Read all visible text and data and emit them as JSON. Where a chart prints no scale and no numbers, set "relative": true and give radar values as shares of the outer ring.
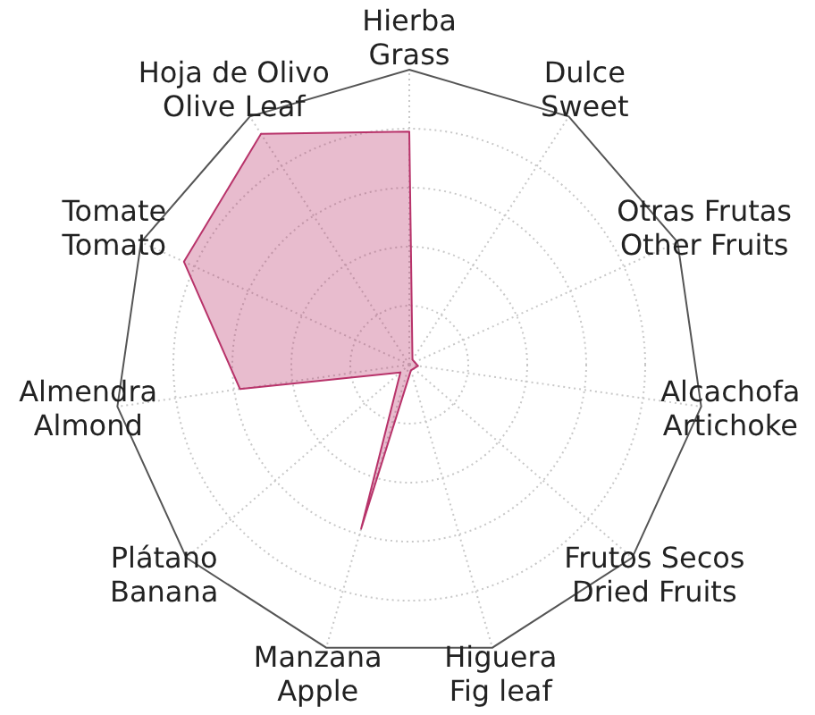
{
  "chart_data": {
    "type": "radar",
    "categories": [
      "Hierba\nGrass",
      "Dulce\nSweet",
      "Otras Frutas\nOther Fruits",
      "Alcachofa\nArtichoke",
      "Frutos Secos\nDried Fruits",
      "Higuera\nFig leaf",
      "Manzana\nApple",
      "Plátano\nBanana",
      "Almendra\nAlmond",
      "Tomate\nTomato",
      "Hoja de Olivo\nOlive Leaf"
    ],
    "series": [
      {
        "color": "#b8336a",
        "values": [
          0.79,
          0.02,
          0.02,
          0.03,
          0.02,
          0.02,
          0.58,
          0.04,
          0.58,
          0.84,
          0.93
        ]
      }
    ],
    "relative": true,
    "grid": true,
    "legend": false,
    "marker": "none"
  }
}
